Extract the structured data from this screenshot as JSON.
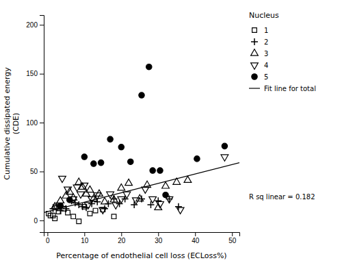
{
  "chart_data": {
    "type": "scatter",
    "xlabel": "Percentage of endothelial cell loss (ECLoss%)",
    "ylabel": "Cumulative dissipated energy\n(CDE)",
    "xlim": [
      -1,
      52
    ],
    "ylim": [
      -12,
      210
    ],
    "xticks": [
      0,
      10,
      20,
      30,
      40,
      50
    ],
    "yticks": [
      0,
      50,
      100,
      150,
      200
    ],
    "legend": "right",
    "legend_title": "Nucleus",
    "annotations": [
      "R sq linear = 0.182"
    ],
    "series": [
      {
        "name": "1",
        "marker": "square-open",
        "color": "black",
        "x": [
          0.3,
          0.8,
          1.5,
          2.0,
          3.0,
          4.5,
          5.5,
          7.0,
          8.5,
          10.0,
          11.5,
          13.0,
          15.0,
          18.0
        ],
        "values": [
          7,
          5,
          5,
          2,
          9,
          12,
          8,
          4,
          -1,
          14,
          7,
          10,
          11,
          4
        ]
      },
      {
        "name": "2",
        "marker": "plus",
        "color": "black",
        "x": [
          1.5,
          2.5,
          3.5,
          5.0,
          6.5,
          7.5,
          8.5,
          9.5,
          10.5,
          12.0,
          13.5,
          15.5,
          16.5,
          18.0,
          19.5,
          21.0,
          23.5,
          25.5,
          28.0,
          30.0,
          33.0,
          35.5
        ],
        "values": [
          12,
          15,
          10,
          12,
          20,
          18,
          16,
          14,
          13,
          17,
          19,
          12,
          17,
          22,
          17,
          22,
          16,
          22,
          16,
          20,
          22,
          14
        ]
      },
      {
        "name": "3",
        "marker": "triangle-up-open",
        "color": "black",
        "x": [
          2.0,
          3.5,
          5.0,
          6.0,
          7.0,
          8.5,
          9.5,
          10.5,
          11.5,
          12.5,
          14.0,
          15.5,
          18.0,
          20.0,
          22.0,
          25.0,
          27.0,
          30.0,
          32.0,
          35.0,
          38.0
        ],
        "values": [
          14,
          20,
          25,
          29,
          23,
          39,
          34,
          27,
          31,
          22,
          27,
          19,
          21,
          33,
          38,
          22,
          36,
          13,
          35,
          39,
          41
        ]
      },
      {
        "name": "4",
        "marker": "triangle-down-open",
        "color": "black",
        "x": [
          2.5,
          4.0,
          5.5,
          7.0,
          8.0,
          9.0,
          10.0,
          11.0,
          12.0,
          13.5,
          15.0,
          17.0,
          18.5,
          20.0,
          21.5,
          24.0,
          26.5,
          28.5,
          30.5,
          33.0,
          36.0,
          48.0
        ],
        "values": [
          14,
          43,
          32,
          22,
          34,
          27,
          36,
          16,
          22,
          26,
          11,
          27,
          16,
          22,
          27,
          21,
          32,
          22,
          17,
          22,
          11,
          65
        ]
      },
      {
        "name": "5",
        "marker": "circle",
        "color": "black",
        "x": [
          3.5,
          6.0,
          10.0,
          12.5,
          14.5,
          17.0,
          20.0,
          22.5,
          25.5,
          27.5,
          28.5,
          30.5,
          32.0,
          40.5,
          48.0
        ],
        "values": [
          15,
          21,
          65,
          58,
          59,
          83,
          75,
          60,
          128,
          157,
          51,
          51,
          26,
          63,
          76
        ]
      },
      {
        "name": "Fit line for total",
        "type": "line",
        "line_style": "solid",
        "color": "black",
        "x": [
          -1,
          52
        ],
        "values": [
          8.0,
          59.0
        ]
      }
    ]
  }
}
